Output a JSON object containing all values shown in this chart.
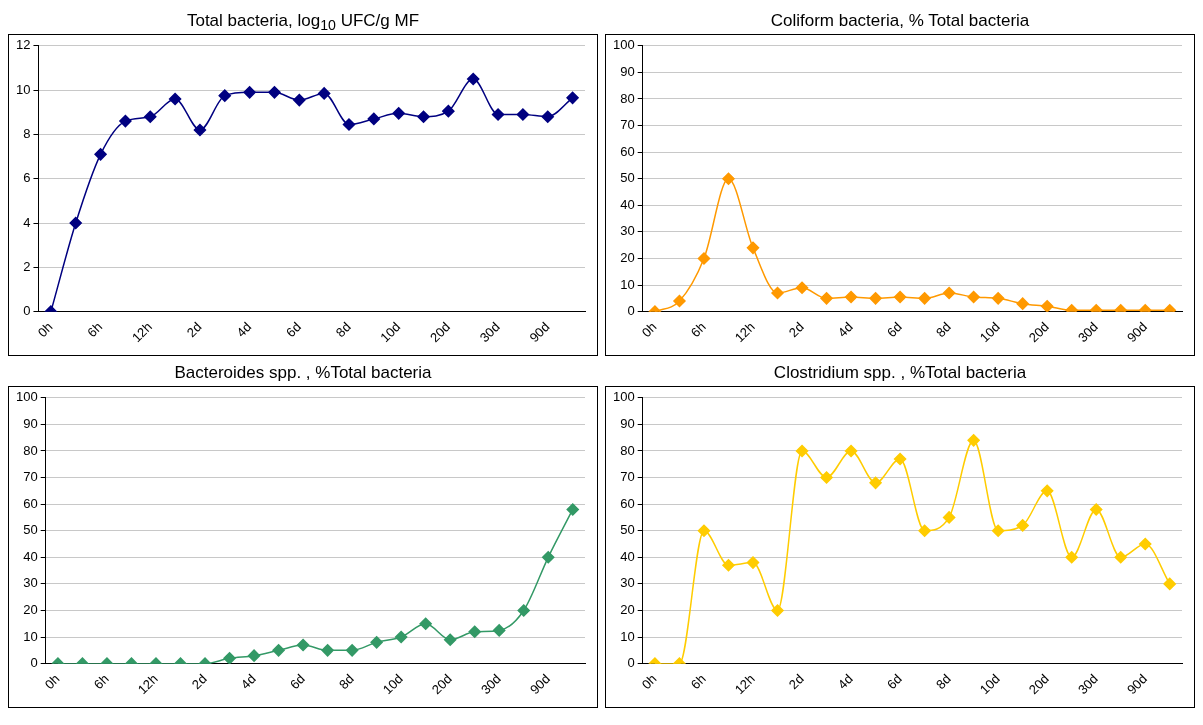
{
  "chart_data": [
    {
      "type": "line",
      "title": "Total bacteria, log$_{10}$ UFC/g MF",
      "categories": [
        "0h",
        null,
        "6h",
        null,
        "12h",
        null,
        "2d",
        null,
        "4d",
        null,
        "6d",
        null,
        "8d",
        null,
        "10d",
        null,
        "20d",
        null,
        "30d",
        null,
        "90d",
        null
      ],
      "series": [
        {
          "color": "#000080",
          "values": [
            0,
            4,
            7.1,
            8.6,
            8.8,
            9.6,
            8.2,
            9.75,
            9.9,
            9.9,
            9.55,
            9.85,
            8.45,
            8.7,
            8.95,
            8.8,
            9.05,
            10.5,
            8.9,
            8.9,
            8.8,
            9.65
          ]
        }
      ],
      "ylim": [
        0,
        12
      ],
      "yticks": [
        0,
        2,
        4,
        6,
        8,
        10,
        12
      ],
      "grid": "y",
      "marker": "diamond"
    },
    {
      "type": "line",
      "title": "Coliform bacteria, % Total bacteria",
      "categories": [
        "0h",
        null,
        "6h",
        null,
        "12h",
        null,
        "2d",
        null,
        "4d",
        null,
        "6d",
        null,
        "8d",
        null,
        "10d",
        null,
        "20d",
        null,
        "30d",
        null,
        "90d",
        null
      ],
      "series": [
        {
          "color": "#ff9900",
          "values": [
            0,
            4,
            20,
            50,
            24,
            7,
            9,
            5,
            5.5,
            5,
            5.5,
            5,
            7,
            5.5,
            5,
            3,
            2,
            0.5,
            0.5,
            0.5,
            0.5,
            0.5
          ]
        }
      ],
      "ylim": [
        0,
        100
      ],
      "yticks": [
        0,
        10,
        20,
        30,
        40,
        50,
        60,
        70,
        80,
        90,
        100
      ],
      "grid": "y",
      "marker": "diamond"
    },
    {
      "type": "line",
      "title": "Bacteroides spp. , %Total bacteria",
      "categories": [
        "0h",
        null,
        "6h",
        null,
        "12h",
        null,
        "2d",
        null,
        "4d",
        null,
        "6d",
        null,
        "8d",
        null,
        "10d",
        null,
        "20d",
        null,
        "30d",
        null,
        "90d",
        null
      ],
      "series": [
        {
          "color": "#339966",
          "values": [
            0,
            0,
            0,
            0,
            0,
            0,
            0,
            2,
            3,
            5,
            7,
            5,
            5,
            8,
            10,
            15,
            9,
            12,
            12.5,
            20,
            40,
            58
          ]
        }
      ],
      "ylim": [
        0,
        100
      ],
      "yticks": [
        0,
        10,
        20,
        30,
        40,
        50,
        60,
        70,
        80,
        90,
        100
      ],
      "grid": "y",
      "marker": "diamond"
    },
    {
      "type": "line",
      "title": "Clostridium spp. , %Total bacteria",
      "categories": [
        "0h",
        null,
        "6h",
        null,
        "12h",
        null,
        "2d",
        null,
        "4d",
        null,
        "6d",
        null,
        "8d",
        null,
        "10d",
        null,
        "20d",
        null,
        "30d",
        null,
        "90d",
        null
      ],
      "series": [
        {
          "color": "#ffcc00",
          "values": [
            0,
            0,
            50,
            37,
            38,
            20,
            80,
            70,
            80,
            68,
            77,
            50,
            55,
            84,
            50,
            52,
            65,
            40,
            58,
            40,
            45,
            30
          ]
        }
      ],
      "ylim": [
        0,
        100
      ],
      "yticks": [
        0,
        10,
        20,
        30,
        40,
        50,
        60,
        70,
        80,
        90,
        100
      ],
      "grid": "y",
      "marker": "diamond"
    }
  ]
}
